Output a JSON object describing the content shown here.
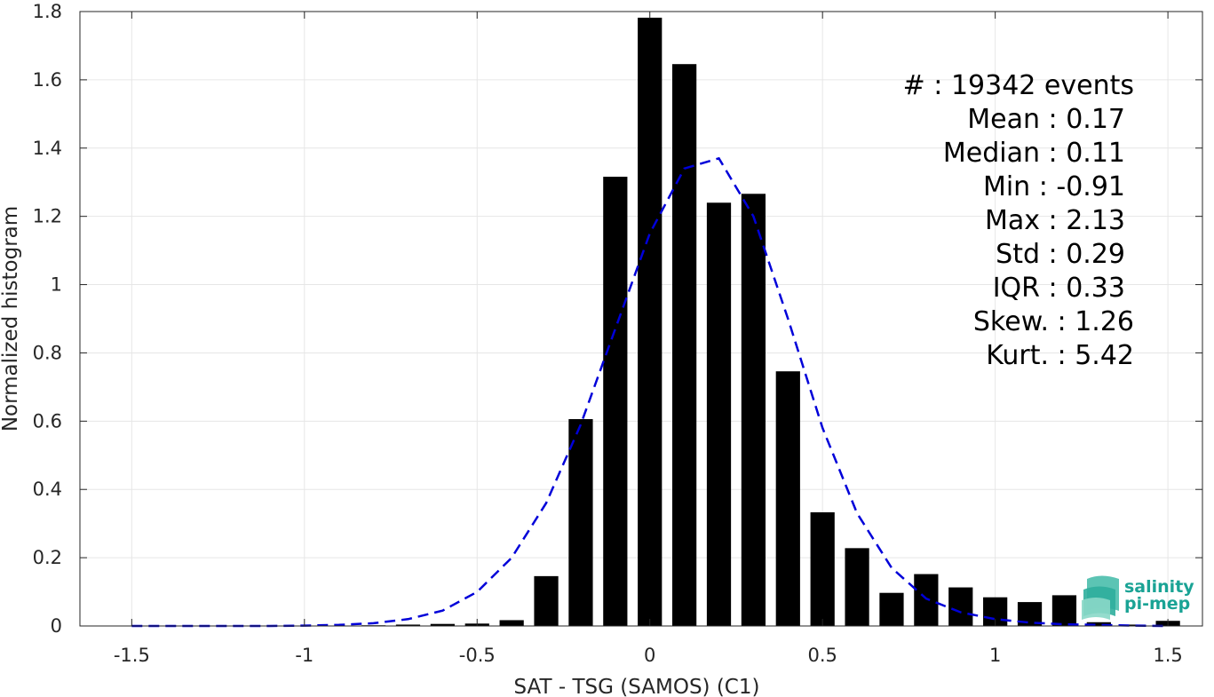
{
  "chart_data": {
    "type": "bar",
    "xlabel": "SAT - TSG (SAMOS) (C1)",
    "ylabel": "Normalized histogram",
    "xlim": [
      -1.65,
      1.6
    ],
    "ylim": [
      0,
      1.8
    ],
    "xticks": [
      -1.5,
      -1,
      -0.5,
      0,
      0.5,
      1,
      1.5
    ],
    "xtick_labels": [
      "-1.5",
      "-1",
      "-0.5",
      "0",
      "0.5",
      "1",
      "1.5"
    ],
    "yticks": [
      0,
      0.2,
      0.4,
      0.6,
      0.8,
      1,
      1.2,
      1.4,
      1.6,
      1.8
    ],
    "ytick_labels": [
      "0",
      "0.2",
      "0.4",
      "0.6",
      "0.8",
      "1",
      "1.2",
      "1.4",
      "1.6",
      "1.8"
    ],
    "grid": true,
    "bar_color": "#000000",
    "bar_width": 0.07,
    "bars": {
      "x": [
        -0.8,
        -0.7,
        -0.6,
        -0.5,
        -0.4,
        -0.3,
        -0.2,
        -0.1,
        0.0,
        0.1,
        0.2,
        0.3,
        0.4,
        0.5,
        0.6,
        0.7,
        0.8,
        0.9,
        1.0,
        1.1,
        1.2,
        1.3,
        1.4,
        1.5
      ],
      "values": [
        0.002,
        0.004,
        0.006,
        0.007,
        0.017,
        0.146,
        0.606,
        1.316,
        1.782,
        1.646,
        1.24,
        1.266,
        0.746,
        0.333,
        0.228,
        0.097,
        0.152,
        0.113,
        0.084,
        0.07,
        0.09,
        0.011,
        0.004,
        0.015
      ]
    },
    "curve": {
      "color": "#0000d9",
      "style": "dashed",
      "x": [
        -1.5,
        -1.4,
        -1.3,
        -1.2,
        -1.1,
        -1.0,
        -0.9,
        -0.8,
        -0.7,
        -0.6,
        -0.5,
        -0.4,
        -0.3,
        -0.2,
        -0.1,
        0.0,
        0.1,
        0.2,
        0.3,
        0.4,
        0.5,
        0.6,
        0.7,
        0.8,
        0.9,
        1.0,
        1.1,
        1.2,
        1.3,
        1.4,
        1.5
      ],
      "y": [
        0.0,
        0.0,
        0.0,
        0.0,
        0.0,
        0.001,
        0.003,
        0.008,
        0.02,
        0.045,
        0.1,
        0.2,
        0.36,
        0.59,
        0.87,
        1.15,
        1.34,
        1.37,
        1.2,
        0.9,
        0.58,
        0.33,
        0.17,
        0.08,
        0.04,
        0.02,
        0.01,
        0.005,
        0.003,
        0.001,
        0.0
      ]
    },
    "annotations": {
      "count": "#  : 19342 events",
      "stats": [
        "Mean : 0.17",
        "Median : 0.11",
        "Min : -0.91",
        "Max : 2.13",
        "Std : 0.29",
        "IQR : 0.33",
        "Skew. : 1.26",
        "Kurt. : 5.42"
      ]
    }
  },
  "logo": {
    "line1": "salinity",
    "line2": "pi-mep",
    "color": "#1aa395"
  }
}
